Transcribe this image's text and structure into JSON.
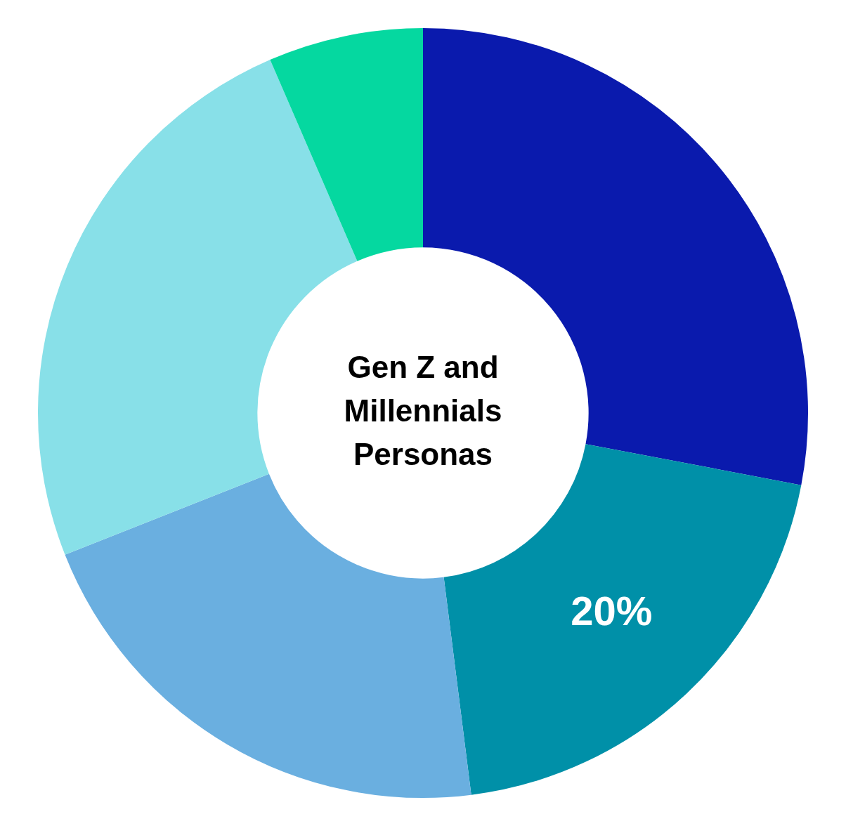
{
  "chart_data": {
    "type": "donut",
    "title": "Gen Z and Millennials Personas",
    "categories": [
      null,
      null,
      null,
      null,
      null
    ],
    "values": [
      28,
      20,
      21,
      24.5,
      6.5
    ],
    "colors": [
      "#0a1aad",
      "#0090a8",
      "#6aafe0",
      "#88e0e8",
      "#05d8a0"
    ],
    "value_labels": [
      null,
      "20%",
      null,
      null,
      null
    ],
    "legend": false
  }
}
